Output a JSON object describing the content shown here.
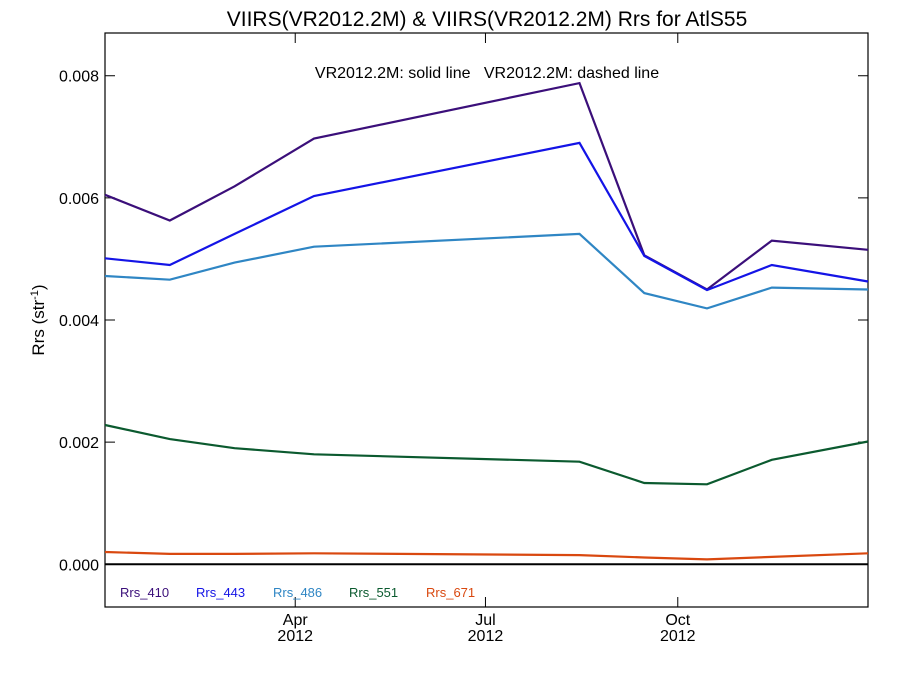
{
  "chart_data": {
    "type": "line",
    "title": "VIIRS(VR2012.2M) & VIIRS(VR2012.2M)  Rrs for AtlS55",
    "annotation": "VR2012.2M: solid line   VR2012.2M: dashed line",
    "xlabel": "",
    "ylabel": "Rrs (str",
    "ylabel_sup": "-1",
    "ylabel_close": ")",
    "ylim": [
      -0.0007,
      0.0087
    ],
    "xlim": [
      "2012-01-01",
      "2012-12-31"
    ],
    "y_ticks": [
      {
        "value": 0.0,
        "label": "0.000"
      },
      {
        "value": 0.002,
        "label": "0.002"
      },
      {
        "value": 0.004,
        "label": "0.004"
      },
      {
        "value": 0.006,
        "label": "0.006"
      },
      {
        "value": 0.008,
        "label": "0.008"
      }
    ],
    "x_ticks": [
      {
        "date": "2012-04-01",
        "month": "Apr",
        "year": "2012"
      },
      {
        "date": "2012-07-01",
        "month": "Jul",
        "year": "2012"
      },
      {
        "date": "2012-10-01",
        "month": "Oct",
        "year": "2012"
      }
    ],
    "x": [
      "2012-01-01",
      "2012-02-01",
      "2012-03-03",
      "2012-04-10",
      "2012-08-15",
      "2012-09-15",
      "2012-10-15",
      "2012-11-15",
      "2012-12-31"
    ],
    "series": [
      {
        "name": "Rrs_410",
        "color": "#3b0f7a",
        "values": [
          0.00605,
          0.00563,
          0.00619,
          0.00697,
          0.00788,
          0.00506,
          0.0045,
          0.0053,
          0.00515
        ]
      },
      {
        "name": "Rrs_443",
        "color": "#1414e6",
        "values": [
          0.00501,
          0.0049,
          0.00541,
          0.00603,
          0.0069,
          0.00505,
          0.00449,
          0.0049,
          0.00463
        ]
      },
      {
        "name": "Rrs_486",
        "color": "#2f86c4",
        "values": [
          0.00472,
          0.00466,
          0.00494,
          0.0052,
          0.00541,
          0.00444,
          0.00419,
          0.00453,
          0.0045
        ]
      },
      {
        "name": "Rrs_551",
        "color": "#0b5a2f",
        "values": [
          0.00228,
          0.00205,
          0.0019,
          0.0018,
          0.00168,
          0.00133,
          0.00131,
          0.00171,
          0.00201
        ]
      },
      {
        "name": "Rrs_671",
        "color": "#d9480f",
        "values": [
          0.0002,
          0.00017,
          0.00017,
          0.00018,
          0.00015,
          0.00011,
          8e-05,
          0.00012,
          0.00018
        ]
      }
    ],
    "zero_line": true,
    "grid": false,
    "legend_position": "bottom-left"
  }
}
